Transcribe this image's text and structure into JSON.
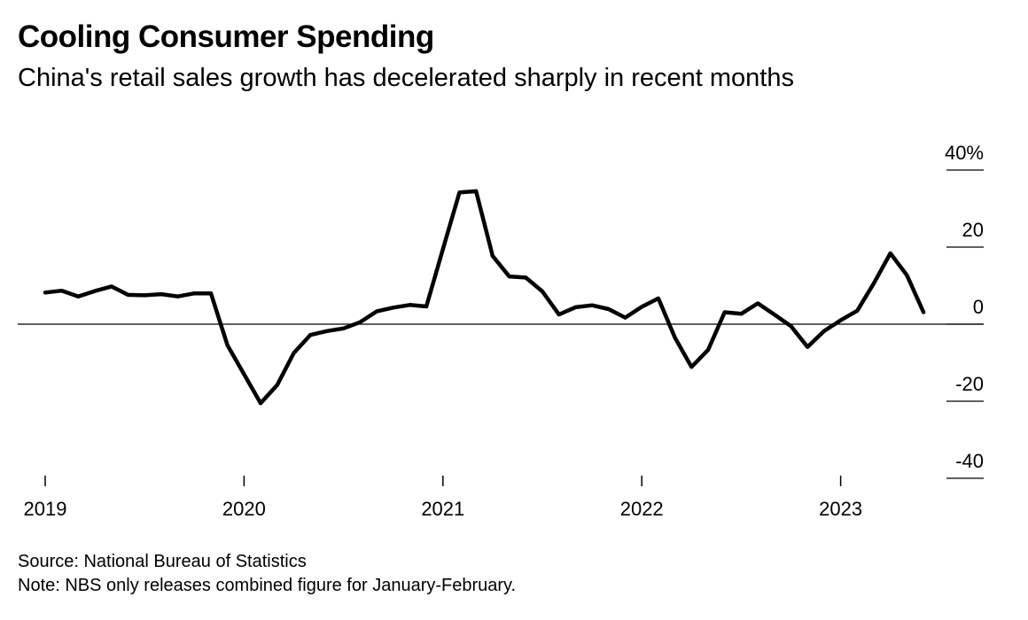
{
  "title": "Cooling Consumer Spending",
  "subtitle": "China's retail sales growth has decelerated sharply in recent months",
  "source": "Source: National Bureau of Statistics",
  "note": "Note: NBS only releases combined figure for January-February.",
  "colors": {
    "line": "#000000",
    "background": "#ffffff"
  },
  "chart_data": {
    "type": "line",
    "title": "Cooling Consumer Spending",
    "xlabel": "",
    "ylabel": "",
    "grid": false,
    "ylim": [
      -40,
      40
    ],
    "y_ticks": [
      {
        "value": 40,
        "label": "40%"
      },
      {
        "value": 20,
        "label": "20"
      },
      {
        "value": 0,
        "label": "0"
      },
      {
        "value": -20,
        "label": "-20"
      },
      {
        "value": -40,
        "label": "-40"
      }
    ],
    "x_ticks": [
      {
        "value": "2019-01",
        "label": "2019"
      },
      {
        "value": "2020-01",
        "label": "2020"
      },
      {
        "value": "2021-01",
        "label": "2021"
      },
      {
        "value": "2022-01",
        "label": "2022"
      },
      {
        "value": "2023-01",
        "label": "2023"
      }
    ],
    "series": [
      {
        "points": [
          [
            "2019-01",
            8.2
          ],
          [
            "2019-02",
            8.7
          ],
          [
            "2019-03",
            7.2
          ],
          [
            "2019-04",
            8.6
          ],
          [
            "2019-05",
            9.8
          ],
          [
            "2019-06",
            7.6
          ],
          [
            "2019-07",
            7.5
          ],
          [
            "2019-08",
            7.8
          ],
          [
            "2019-09",
            7.2
          ],
          [
            "2019-10",
            8.0
          ],
          [
            "2019-11",
            8.0
          ],
          [
            "2019-12",
            -5.5
          ],
          [
            "2020-02",
            -20.5
          ],
          [
            "2020-03",
            -15.8
          ],
          [
            "2020-04",
            -7.5
          ],
          [
            "2020-05",
            -2.8
          ],
          [
            "2020-06",
            -1.8
          ],
          [
            "2020-07",
            -1.1
          ],
          [
            "2020-08",
            0.5
          ],
          [
            "2020-09",
            3.3
          ],
          [
            "2020-10",
            4.3
          ],
          [
            "2020-11",
            5.0
          ],
          [
            "2020-12",
            4.6
          ],
          [
            "2021-01",
            19.5
          ],
          [
            "2021-02",
            34.2
          ],
          [
            "2021-03",
            34.5
          ],
          [
            "2021-04",
            17.7
          ],
          [
            "2021-05",
            12.4
          ],
          [
            "2021-06",
            12.1
          ],
          [
            "2021-07",
            8.5
          ],
          [
            "2021-08",
            2.5
          ],
          [
            "2021-09",
            4.4
          ],
          [
            "2021-10",
            4.9
          ],
          [
            "2021-11",
            3.9
          ],
          [
            "2021-12",
            1.7
          ],
          [
            "2022-01",
            4.5
          ],
          [
            "2022-02",
            6.7
          ],
          [
            "2022-03",
            -3.5
          ],
          [
            "2022-04",
            -11.1
          ],
          [
            "2022-05",
            -6.7
          ],
          [
            "2022-06",
            3.1
          ],
          [
            "2022-07",
            2.7
          ],
          [
            "2022-08",
            5.4
          ],
          [
            "2022-09",
            2.5
          ],
          [
            "2022-10",
            -0.5
          ],
          [
            "2022-11",
            -5.9
          ],
          [
            "2022-12",
            -1.8
          ],
          [
            "2023-01",
            1.0
          ],
          [
            "2023-02",
            3.5
          ],
          [
            "2023-03",
            10.6
          ],
          [
            "2023-04",
            18.4
          ],
          [
            "2023-05",
            12.7
          ],
          [
            "2023-06",
            3.1
          ]
        ]
      }
    ]
  }
}
